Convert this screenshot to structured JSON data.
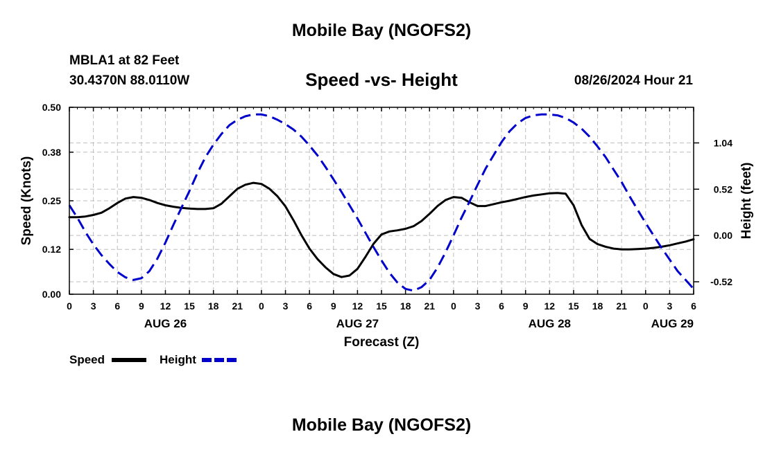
{
  "page": {
    "title": "Mobile Bay (NGOFS2)",
    "station": "MBLA1 at 82 Feet",
    "coords": "30.4370N  88.0110W",
    "plot_title": "Speed -vs- Height",
    "datetime": "08/26/2024 Hour 21",
    "bottom_title": "Mobile Bay (NGOFS2)"
  },
  "chart_data": {
    "type": "line",
    "title": "Speed -vs- Height",
    "xlabel": "Forecast (Z)",
    "ylabel": "Speed (Knots)",
    "y2label": "Height (feet)",
    "x_range_hours": [
      0,
      78
    ],
    "x_ticks": [
      {
        "h": 0,
        "label": "0"
      },
      {
        "h": 3,
        "label": "3"
      },
      {
        "h": 6,
        "label": "6"
      },
      {
        "h": 9,
        "label": "9"
      },
      {
        "h": 12,
        "label": "12"
      },
      {
        "h": 15,
        "label": "15"
      },
      {
        "h": 18,
        "label": "18"
      },
      {
        "h": 21,
        "label": "21"
      },
      {
        "h": 24,
        "label": "0"
      },
      {
        "h": 27,
        "label": "3"
      },
      {
        "h": 30,
        "label": "6"
      },
      {
        "h": 33,
        "label": "9"
      },
      {
        "h": 36,
        "label": "12"
      },
      {
        "h": 39,
        "label": "15"
      },
      {
        "h": 42,
        "label": "18"
      },
      {
        "h": 45,
        "label": "21"
      },
      {
        "h": 48,
        "label": "0"
      },
      {
        "h": 51,
        "label": "3"
      },
      {
        "h": 54,
        "label": "6"
      },
      {
        "h": 57,
        "label": "9"
      },
      {
        "h": 60,
        "label": "12"
      },
      {
        "h": 63,
        "label": "15"
      },
      {
        "h": 66,
        "label": "18"
      },
      {
        "h": 69,
        "label": "21"
      },
      {
        "h": 72,
        "label": "0"
      },
      {
        "h": 75,
        "label": "3"
      },
      {
        "h": 78,
        "label": "6"
      }
    ],
    "date_labels": [
      {
        "h": 12,
        "label": "AUG 26"
      },
      {
        "h": 36,
        "label": "AUG 27"
      },
      {
        "h": 60,
        "label": "AUG 28"
      },
      {
        "h": 75,
        "label": "AUG 29"
      }
    ],
    "ylim": [
      0,
      0.5
    ],
    "y_ticks": [
      0.0,
      0.12,
      0.25,
      0.38,
      0.5
    ],
    "y_tick_labels": [
      "0.00",
      "0.12",
      "0.25",
      "0.38",
      "0.50"
    ],
    "y2lim": [
      -0.66,
      1.44
    ],
    "y2_ticks": [
      -0.52,
      0.0,
      0.52,
      1.04
    ],
    "y2_tick_labels": [
      "-0.52",
      "0.00",
      "0.52",
      "1.04"
    ],
    "grid": true,
    "legend_position": "bottom-left",
    "series": [
      {
        "name": "Speed",
        "axis": "left",
        "color": "#000000",
        "dash": "solid",
        "x": [
          0,
          1,
          2,
          3,
          4,
          5,
          6,
          7,
          8,
          9,
          10,
          11,
          12,
          13,
          14,
          15,
          16,
          17,
          18,
          19,
          20,
          21,
          22,
          23,
          24,
          25,
          26,
          27,
          28,
          29,
          30,
          31,
          32,
          33,
          34,
          35,
          36,
          37,
          38,
          39,
          40,
          41,
          42,
          43,
          44,
          45,
          46,
          47,
          48,
          49,
          50,
          51,
          52,
          53,
          54,
          55,
          56,
          57,
          58,
          59,
          60,
          61,
          62,
          63,
          64,
          65,
          66,
          67,
          68,
          69,
          70,
          71,
          72,
          73,
          74,
          75,
          76,
          77,
          78
        ],
        "y": [
          0.206,
          0.206,
          0.208,
          0.212,
          0.218,
          0.23,
          0.244,
          0.256,
          0.26,
          0.258,
          0.252,
          0.244,
          0.238,
          0.234,
          0.231,
          0.229,
          0.228,
          0.228,
          0.23,
          0.242,
          0.262,
          0.282,
          0.293,
          0.298,
          0.295,
          0.282,
          0.262,
          0.235,
          0.198,
          0.158,
          0.122,
          0.094,
          0.072,
          0.054,
          0.046,
          0.05,
          0.068,
          0.1,
          0.135,
          0.16,
          0.168,
          0.171,
          0.175,
          0.182,
          0.196,
          0.215,
          0.236,
          0.252,
          0.26,
          0.258,
          0.246,
          0.236,
          0.236,
          0.241,
          0.246,
          0.25,
          0.255,
          0.26,
          0.264,
          0.267,
          0.27,
          0.271,
          0.269,
          0.238,
          0.185,
          0.148,
          0.134,
          0.127,
          0.122,
          0.12,
          0.12,
          0.121,
          0.122,
          0.124,
          0.127,
          0.131,
          0.136,
          0.141,
          0.147
        ]
      },
      {
        "name": "Height",
        "axis": "right",
        "color": "#0000cc",
        "dash": "dashed",
        "x": [
          0,
          1,
          2,
          3,
          4,
          5,
          6,
          7,
          8,
          9,
          10,
          11,
          12,
          13,
          14,
          15,
          16,
          17,
          18,
          19,
          20,
          21,
          22,
          23,
          24,
          25,
          26,
          27,
          28,
          29,
          30,
          31,
          32,
          33,
          34,
          35,
          36,
          37,
          38,
          39,
          40,
          41,
          42,
          43,
          44,
          45,
          46,
          47,
          48,
          49,
          50,
          51,
          52,
          53,
          54,
          55,
          56,
          57,
          58,
          59,
          60,
          61,
          62,
          63,
          64,
          65,
          66,
          67,
          68,
          69,
          70,
          71,
          72,
          73,
          74,
          75,
          76,
          77,
          78
        ],
        "y": [
          0.34,
          0.2,
          0.04,
          -0.1,
          -0.22,
          -0.32,
          -0.41,
          -0.47,
          -0.5,
          -0.48,
          -0.4,
          -0.26,
          -0.08,
          0.12,
          0.31,
          0.5,
          0.7,
          0.88,
          1.02,
          1.14,
          1.24,
          1.3,
          1.34,
          1.36,
          1.36,
          1.34,
          1.3,
          1.25,
          1.19,
          1.11,
          1.01,
          0.9,
          0.77,
          0.63,
          0.49,
          0.34,
          0.19,
          0.03,
          -0.13,
          -0.28,
          -0.42,
          -0.53,
          -0.6,
          -0.62,
          -0.58,
          -0.5,
          -0.36,
          -0.19,
          0.0,
          0.2,
          0.38,
          0.57,
          0.75,
          0.9,
          1.05,
          1.17,
          1.26,
          1.32,
          1.35,
          1.36,
          1.36,
          1.35,
          1.32,
          1.27,
          1.2,
          1.11,
          1.0,
          0.88,
          0.74,
          0.6,
          0.44,
          0.29,
          0.14,
          0.0,
          -0.14,
          -0.27,
          -0.4,
          -0.5,
          -0.6
        ]
      }
    ]
  }
}
